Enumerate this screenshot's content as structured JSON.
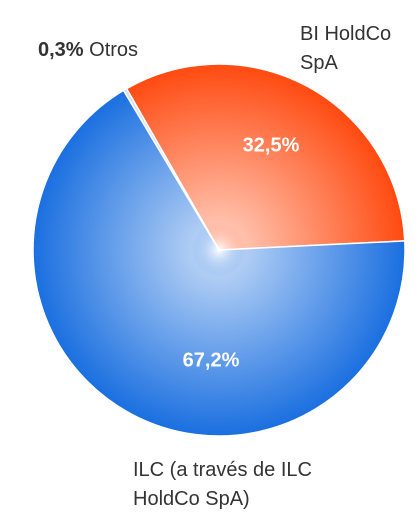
{
  "chart_data": {
    "type": "pie",
    "categories": [
      "BI HoldCo SpA",
      "ILC (a través de ILC HoldCo SpA)",
      "Otros"
    ],
    "values": [
      32.5,
      67.2,
      0.3
    ],
    "value_labels": [
      "32,5%",
      "67,2%",
      "0,3%"
    ],
    "colors": [
      "#ff4a10",
      "#1a6fe0",
      "#d9dde3"
    ]
  }
}
